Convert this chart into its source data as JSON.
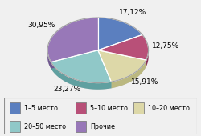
{
  "labels": [
    "1–5 место",
    "5–10 место",
    "10–20 место",
    "20–50 место",
    "Прочие"
  ],
  "values": [
    17.12,
    12.75,
    15.91,
    23.27,
    30.95
  ],
  "colors": [
    "#5b7fbf",
    "#b85078",
    "#ddd8a8",
    "#90c8c8",
    "#9878b8"
  ],
  "dark_colors": [
    "#3a5590",
    "#8a3058",
    "#bbb880",
    "#60a0a0",
    "#705890"
  ],
  "pct_labels": [
    "17,12%",
    "12,75%",
    "15,91%",
    "23,27%",
    "30,95%"
  ],
  "startangle": 90,
  "figsize": [
    2.5,
    1.7
  ],
  "dpi": 100,
  "bg_color": "#f0f0f0",
  "legend_labels": [
    "1–5 место",
    "5–10 место",
    "10–20 место",
    "20–50 место",
    "Прочие"
  ]
}
